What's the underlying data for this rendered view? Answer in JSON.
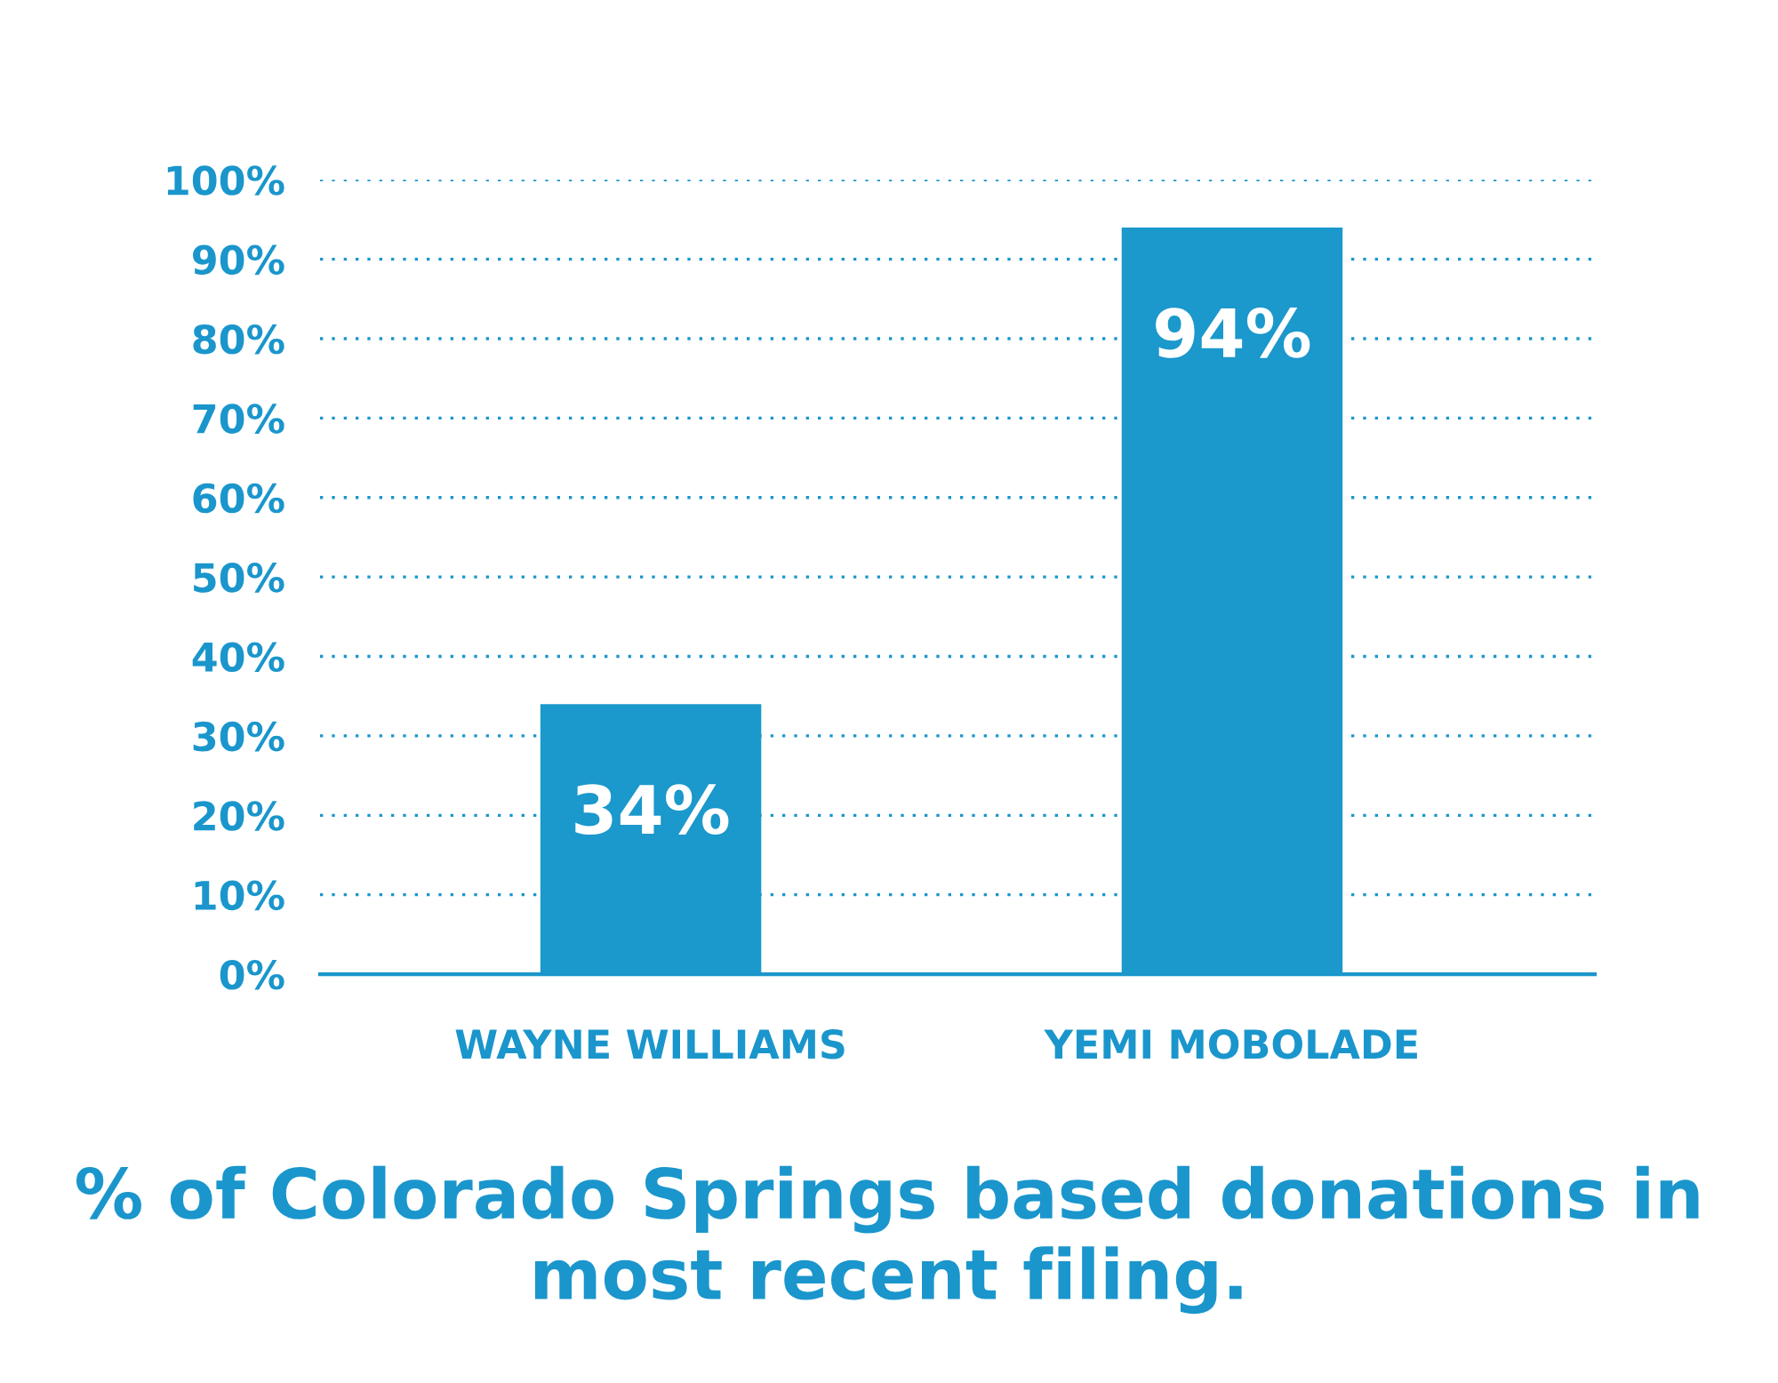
{
  "chart_data": {
    "type": "bar",
    "title": "% of Colorado Springs based donations in most recent filing.",
    "categories": [
      "WAYNE WILLIAMS",
      "YEMI MOBOLADE"
    ],
    "values": [
      34,
      94
    ],
    "color": "#1b98cc",
    "ylim": [
      0,
      100
    ],
    "yticks": [
      {
        "value": 0,
        "label": "0%"
      },
      {
        "value": 10,
        "label": "10%"
      },
      {
        "value": 20,
        "label": "20%"
      },
      {
        "value": 30,
        "label": "30%"
      },
      {
        "value": 40,
        "label": "40%"
      },
      {
        "value": 50,
        "label": "50%"
      },
      {
        "value": 60,
        "label": "60%"
      },
      {
        "value": 70,
        "label": "70%"
      },
      {
        "value": 80,
        "label": "80%"
      },
      {
        "value": 90,
        "label": "90%"
      },
      {
        "value": 100,
        "label": "100%"
      }
    ],
    "value_labels": [
      "34%",
      "94%"
    ],
    "grid": "y",
    "legend": false
  }
}
